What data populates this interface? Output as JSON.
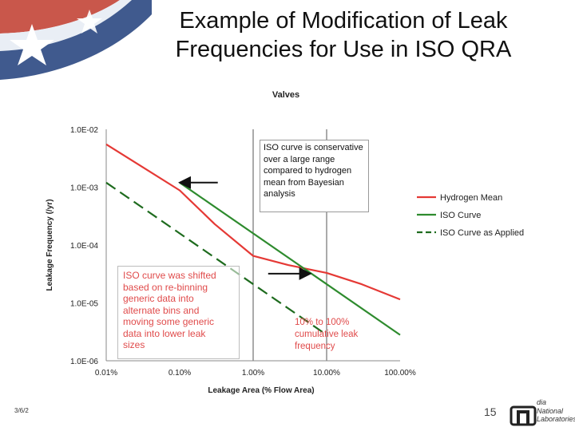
{
  "slide": {
    "title_line1": "Example of Modification of Leak",
    "title_line2": "Frequencies for Use in ISO QRA",
    "footer_date": "3/6/2",
    "page_number": "15",
    "logo_lines": [
      "dia",
      "National",
      "Laboratories"
    ],
    "colors": {
      "hydrogen_mean": "#e53935",
      "iso_curve": "#2e8b2e",
      "iso_applied": "#1e6b1e",
      "callout_text": "#e04b4b",
      "flag_red": "#c0392b",
      "flag_blue": "#1f3d7a"
    }
  },
  "chart_data": {
    "type": "line",
    "title": "Valves",
    "xlabel": "Leakage Area (% Flow Area)",
    "ylabel": "Leakage Frequency (/yr)",
    "x_scale": "log",
    "y_scale": "log",
    "xlim": [
      0.01,
      100
    ],
    "ylim": [
      1e-06,
      0.01
    ],
    "x_ticks": [
      0.01,
      0.1,
      1,
      10,
      100
    ],
    "x_tick_labels": [
      "0.01%",
      "0.10%",
      "1.00%",
      "10.00%",
      "100.00%"
    ],
    "y_ticks": [
      0.01,
      0.001,
      0.0001,
      1e-05,
      1e-06
    ],
    "y_tick_labels": [
      "1.0E-02",
      "1.0E-03",
      "1.0E-04",
      "1.0E-05",
      "1.0E-06"
    ],
    "gridlines_x": [
      1,
      10
    ],
    "series": [
      {
        "name": "Hydrogen Mean",
        "color": "#e53935",
        "dash": "solid",
        "x": [
          0.01,
          0.03,
          0.1,
          0.3,
          1,
          3,
          10,
          30,
          100
        ],
        "y": [
          0.0055,
          0.0023,
          0.00088,
          0.00023,
          6.5e-05,
          4.5e-05,
          3.3e-05,
          2.1e-05,
          1.15e-05
        ]
      },
      {
        "name": "ISO Curve",
        "color": "#2e8b2e",
        "dash": "solid",
        "x": [
          0.1,
          100
        ],
        "y": [
          0.0012,
          2.8e-06
        ]
      },
      {
        "name": "ISO Curve as Applied",
        "color": "#1e6b1e",
        "dash": "dashed",
        "x": [
          0.01,
          10
        ],
        "y": [
          0.0012,
          2.8e-06
        ]
      }
    ],
    "legend": [
      "Hydrogen Mean",
      "ISO Curve",
      "ISO Curve as Applied"
    ],
    "legend_position": "right",
    "annotations": {
      "iso_conservative": "ISO curve is conservative over a large range compared to hydrogen mean from Bayesian analysis",
      "iso_shift_lines": [
        "ISO curve was shifted",
        "based on re-binning",
        "generic data into",
        "alternate bins and",
        "moving some generic",
        "data into lower leak",
        "sizes"
      ],
      "cumulative_lines": [
        "10% to 100%",
        "cumulative leak",
        "frequency"
      ],
      "shift_arrows": [
        {
          "from": [
            0.33,
            0.0012
          ],
          "to": [
            0.1,
            0.0012
          ]
        },
        {
          "from": [
            1.6,
            3.2e-05
          ],
          "to": [
            6,
            3.2e-05
          ]
        }
      ]
    }
  }
}
